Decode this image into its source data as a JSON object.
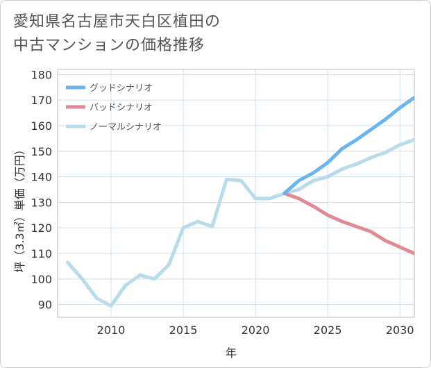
{
  "title": {
    "line1": "愛知県名古屋市天白区植田の",
    "line2": "中古マンションの価格推移"
  },
  "chart_data": {
    "type": "line",
    "title": "愛知県名古屋市天白区植田の中古マンションの価格推移",
    "xlabel": "年",
    "ylabel": "坪（3.3㎡）単価（万円）",
    "xlim": [
      2006.3,
      2031
    ],
    "ylim": [
      85,
      182
    ],
    "xticks": [
      2010,
      2015,
      2020,
      2025,
      2030
    ],
    "yticks": [
      90,
      100,
      110,
      120,
      130,
      140,
      150,
      160,
      170,
      180
    ],
    "grid": true,
    "legend_position": "top-left",
    "series": [
      {
        "name": "グッドシナリオ",
        "color": "#6cb4ee",
        "x": [
          2022,
          2023,
          2024,
          2025,
          2026,
          2027,
          2028,
          2029,
          2030,
          2031
        ],
        "y": [
          133.5,
          138.5,
          141.5,
          145.5,
          151,
          154.5,
          158.5,
          162.5,
          167,
          171
        ]
      },
      {
        "name": "バッドシナリオ",
        "color": "#e08a94",
        "x": [
          2022,
          2023,
          2024,
          2025,
          2026,
          2027,
          2028,
          2029,
          2030,
          2031
        ],
        "y": [
          133.5,
          131.5,
          128.5,
          125,
          122.5,
          120.5,
          118.5,
          115,
          112.5,
          110
        ]
      },
      {
        "name": "ノーマルシナリオ",
        "color": "#b8dcea",
        "x": [
          2007,
          2008,
          2009,
          2010,
          2011,
          2012,
          2013,
          2014,
          2015,
          2016,
          2017,
          2018,
          2019,
          2020,
          2021,
          2022,
          2023,
          2024,
          2025,
          2026,
          2027,
          2028,
          2029,
          2030,
          2031
        ],
        "y": [
          106.5,
          100,
          92.5,
          89.5,
          97.5,
          101.5,
          100,
          105.5,
          120,
          122.5,
          120.5,
          139,
          138.5,
          131.5,
          131.5,
          133.5,
          135,
          138.5,
          140,
          143,
          145,
          147.5,
          149.5,
          152.5,
          154.5
        ]
      }
    ]
  }
}
